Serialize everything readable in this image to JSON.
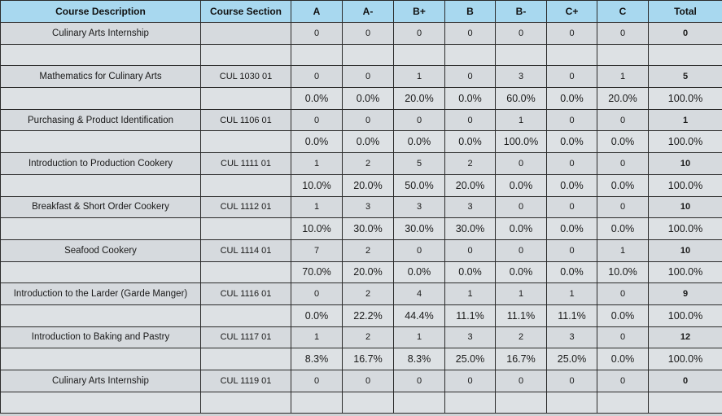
{
  "columns": [
    "Course Description",
    "Course Section",
    "A",
    "A-",
    "B+",
    "B",
    "B-",
    "C+",
    "C",
    "Total"
  ],
  "rows": [
    {
      "desc": "Culinary Arts Internship",
      "section": "",
      "vals": [
        "0",
        "0",
        "0",
        "0",
        "0",
        "0",
        "0"
      ],
      "total": "0",
      "pct": [
        "",
        "",
        "",
        "",
        "",
        "",
        "",
        ""
      ]
    },
    {
      "desc": "Mathematics for Culinary Arts",
      "section": "CUL 1030 01",
      "vals": [
        "0",
        "0",
        "1",
        "0",
        "3",
        "0",
        "1"
      ],
      "total": "5",
      "pct": [
        "0.0%",
        "0.0%",
        "20.0%",
        "0.0%",
        "60.0%",
        "0.0%",
        "20.0%",
        "100.0%"
      ]
    },
    {
      "desc": "Purchasing & Product Identification",
      "section": "CUL 1106 01",
      "vals": [
        "0",
        "0",
        "0",
        "0",
        "1",
        "0",
        "0"
      ],
      "total": "1",
      "pct": [
        "0.0%",
        "0.0%",
        "0.0%",
        "0.0%",
        "100.0%",
        "0.0%",
        "0.0%",
        "100.0%"
      ]
    },
    {
      "desc": "Introduction to Production Cookery",
      "section": "CUL 1111 01",
      "vals": [
        "1",
        "2",
        "5",
        "2",
        "0",
        "0",
        "0"
      ],
      "total": "10",
      "pct": [
        "10.0%",
        "20.0%",
        "50.0%",
        "20.0%",
        "0.0%",
        "0.0%",
        "0.0%",
        "100.0%"
      ]
    },
    {
      "desc": "Breakfast & Short Order Cookery",
      "section": "CUL 1112 01",
      "vals": [
        "1",
        "3",
        "3",
        "3",
        "0",
        "0",
        "0"
      ],
      "total": "10",
      "pct": [
        "10.0%",
        "30.0%",
        "30.0%",
        "30.0%",
        "0.0%",
        "0.0%",
        "0.0%",
        "100.0%"
      ]
    },
    {
      "desc": "Seafood Cookery",
      "section": "CUL 1114 01",
      "vals": [
        "7",
        "2",
        "0",
        "0",
        "0",
        "0",
        "1"
      ],
      "total": "10",
      "pct": [
        "70.0%",
        "20.0%",
        "0.0%",
        "0.0%",
        "0.0%",
        "0.0%",
        "10.0%",
        "100.0%"
      ]
    },
    {
      "desc": "Introduction to the Larder (Garde Manger)",
      "section": "CUL 1116 01",
      "vals": [
        "0",
        "2",
        "4",
        "1",
        "1",
        "1",
        "0"
      ],
      "total": "9",
      "pct": [
        "0.0%",
        "22.2%",
        "44.4%",
        "11.1%",
        "11.1%",
        "11.1%",
        "0.0%",
        "100.0%"
      ]
    },
    {
      "desc": "Introduction to Baking and Pastry",
      "section": "CUL 1117 01",
      "vals": [
        "1",
        "2",
        "1",
        "3",
        "2",
        "3",
        "0"
      ],
      "total": "12",
      "pct": [
        "8.3%",
        "16.7%",
        "8.3%",
        "25.0%",
        "16.7%",
        "25.0%",
        "0.0%",
        "100.0%"
      ]
    },
    {
      "desc": "Culinary Arts Internship",
      "section": "CUL 1119 01",
      "vals": [
        "0",
        "0",
        "0",
        "0",
        "0",
        "0",
        "0"
      ],
      "total": "0",
      "pct": [
        "",
        "",
        "",
        "",
        "",
        "",
        "",
        ""
      ]
    }
  ]
}
